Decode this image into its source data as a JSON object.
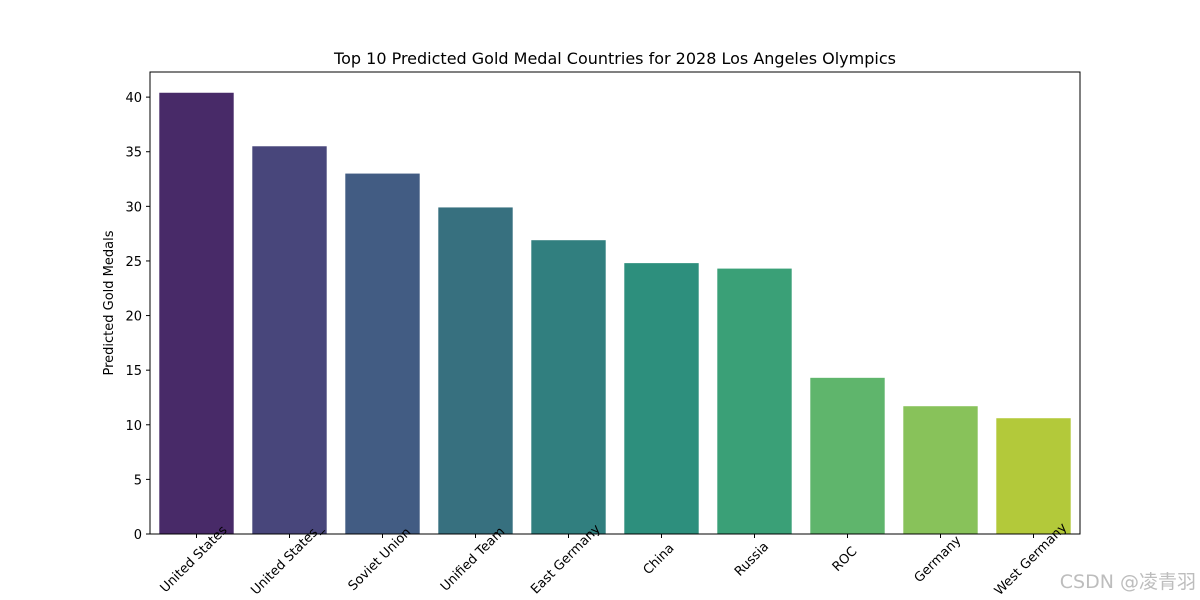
{
  "chart_data": {
    "type": "bar",
    "title": "Top 10 Predicted Gold Medal Countries for 2028 Los Angeles Olympics",
    "xlabel": "",
    "ylabel": "Predicted Gold Medals",
    "categories": [
      "United States",
      "United States_",
      "Soviet Union",
      "Unified Team",
      "East Germany",
      "China",
      "Russia",
      "ROC",
      "Germany",
      "West Germany"
    ],
    "values": [
      40.4,
      35.5,
      33.0,
      29.9,
      26.9,
      24.8,
      24.3,
      14.3,
      11.7,
      10.6
    ],
    "colors": [
      "#482a68",
      "#48467b",
      "#425c83",
      "#37707f",
      "#317f7f",
      "#2d8f7d",
      "#3aa077",
      "#5fb56c",
      "#88c25a",
      "#b3c93a"
    ],
    "ylim": [
      0,
      42.3
    ],
    "yticks": [
      0,
      5,
      10,
      15,
      20,
      25,
      30,
      35,
      40
    ],
    "x_tick_rotation": 45,
    "grid": false,
    "legend": null
  },
  "watermark": "CSDN @凌青羽"
}
